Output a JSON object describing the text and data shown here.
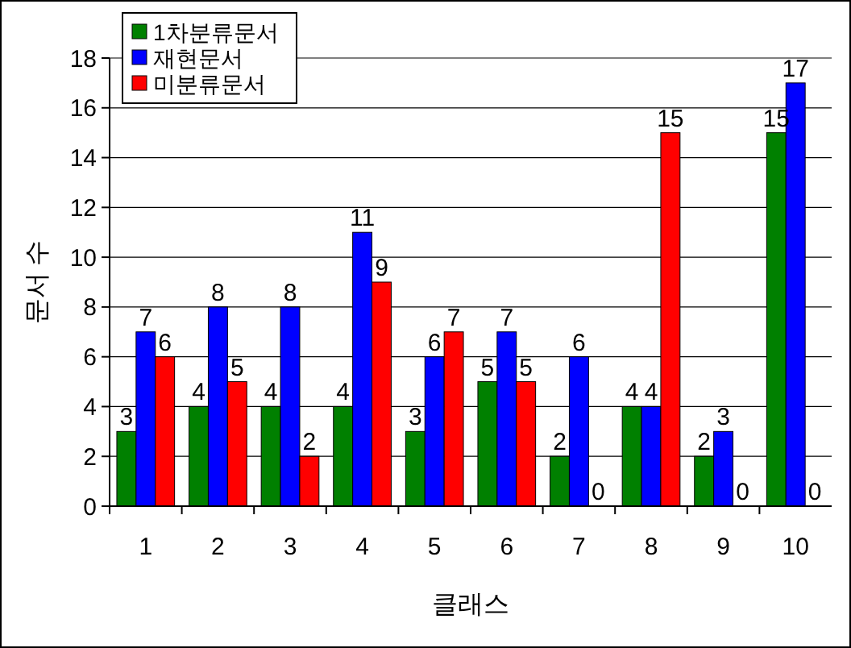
{
  "chart_data": {
    "type": "bar",
    "xlabel": "클래스",
    "ylabel": "문서 수",
    "categories": [
      "1",
      "2",
      "3",
      "4",
      "5",
      "6",
      "7",
      "8",
      "9",
      "10"
    ],
    "series": [
      {
        "name": "1차분류문서",
        "color": "#008000",
        "values": [
          3,
          4,
          4,
          4,
          3,
          5,
          2,
          4,
          2,
          15
        ]
      },
      {
        "name": "재현문서",
        "color": "#0000ff",
        "values": [
          7,
          8,
          8,
          11,
          6,
          7,
          6,
          4,
          3,
          17
        ]
      },
      {
        "name": "미분류문서",
        "color": "#ff0000",
        "values": [
          6,
          5,
          2,
          9,
          7,
          5,
          0,
          15,
          0,
          0
        ]
      }
    ],
    "ylim": [
      0,
      18
    ],
    "yticks": [
      0,
      2,
      4,
      6,
      8,
      10,
      12,
      14,
      16,
      18
    ],
    "grid": "y",
    "legend": "top left",
    "data_labels": true
  }
}
